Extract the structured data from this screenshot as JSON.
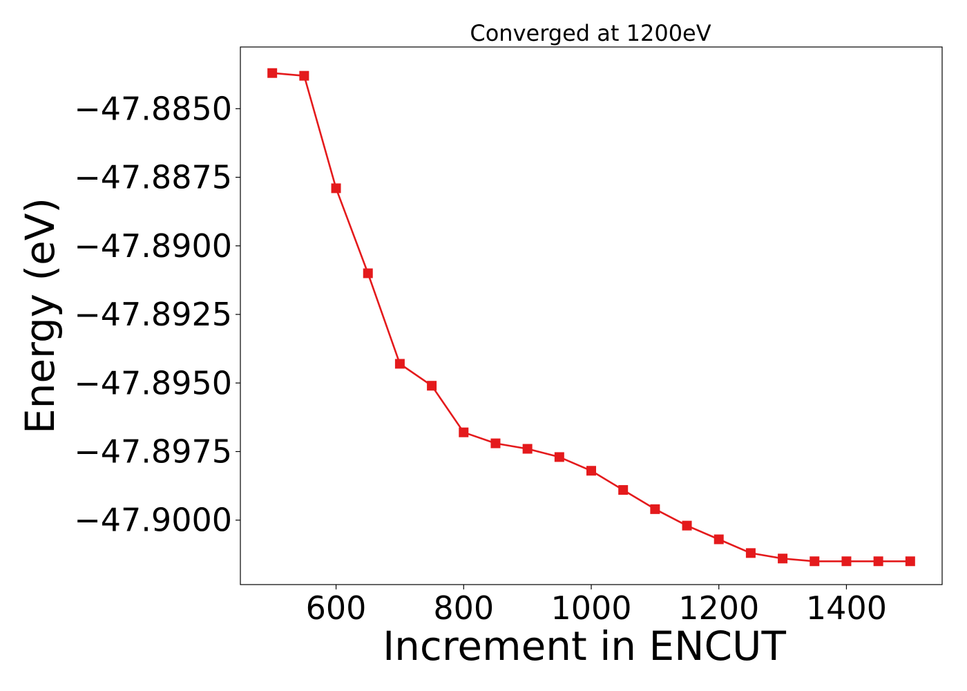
{
  "chart_data": {
    "type": "line",
    "title": "Converged at 1200eV",
    "xlabel": "Increment in ENCUT",
    "ylabel": "Energy (eV)",
    "xlim": [
      450,
      1550
    ],
    "ylim": [
      -47.90235,
      -47.88275
    ],
    "xticks": [
      600,
      800,
      1000,
      1200,
      1400
    ],
    "xtick_labels": [
      "600",
      "800",
      "1000",
      "1200",
      "1400"
    ],
    "yticks": [
      -47.885,
      -47.8875,
      -47.89,
      -47.8925,
      -47.895,
      -47.8975,
      -47.9
    ],
    "ytick_labels": [
      "−47.8850",
      "−47.8875",
      "−47.8900",
      "−47.8925",
      "−47.8950",
      "−47.8975",
      "−47.9000"
    ],
    "grid": false,
    "series": [
      {
        "color": "#e41a1c",
        "marker": "square",
        "x": [
          500,
          550,
          600,
          650,
          700,
          750,
          800,
          850,
          900,
          950,
          1000,
          1050,
          1100,
          1150,
          1200,
          1250,
          1300,
          1350,
          1400,
          1450,
          1500
        ],
        "y": [
          -47.8837,
          -47.8838,
          -47.8879,
          -47.891,
          -47.8943,
          -47.8951,
          -47.8968,
          -47.8972,
          -47.8974,
          -47.8977,
          -47.8982,
          -47.8989,
          -47.8996,
          -47.9002,
          -47.9007,
          -47.9012,
          -47.9014,
          -47.9015,
          -47.9015,
          -47.9015,
          -47.9015
        ]
      }
    ]
  }
}
